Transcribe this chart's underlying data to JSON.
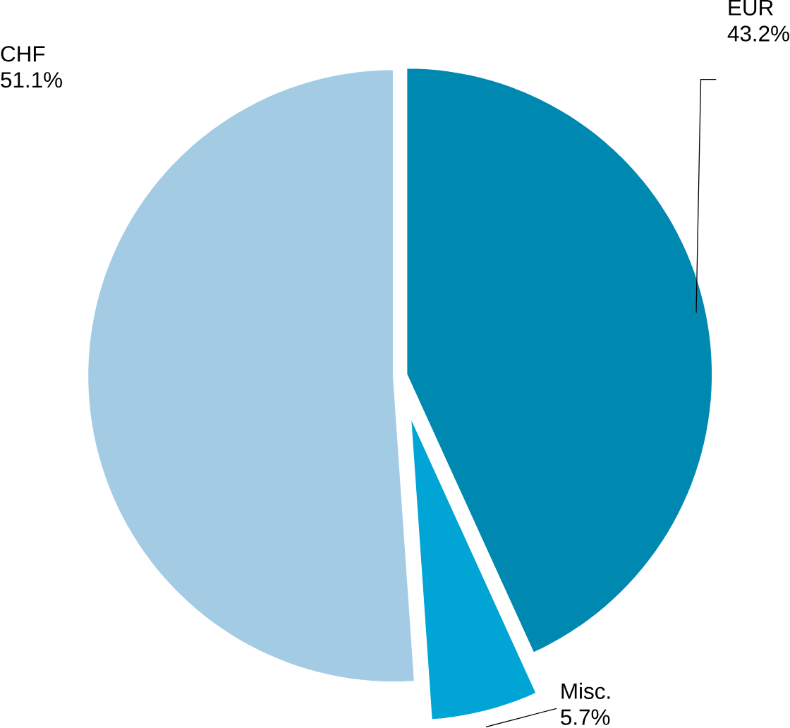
{
  "chart_data": {
    "type": "pie",
    "categories": [
      "EUR",
      "Misc.",
      "CHF"
    ],
    "values": [
      43.2,
      5.7,
      51.1
    ],
    "value_labels": [
      "43.2%",
      "5.7%",
      "51.1%"
    ],
    "colors": [
      "#0089b0",
      "#00a5d6",
      "#a3cce4"
    ]
  }
}
